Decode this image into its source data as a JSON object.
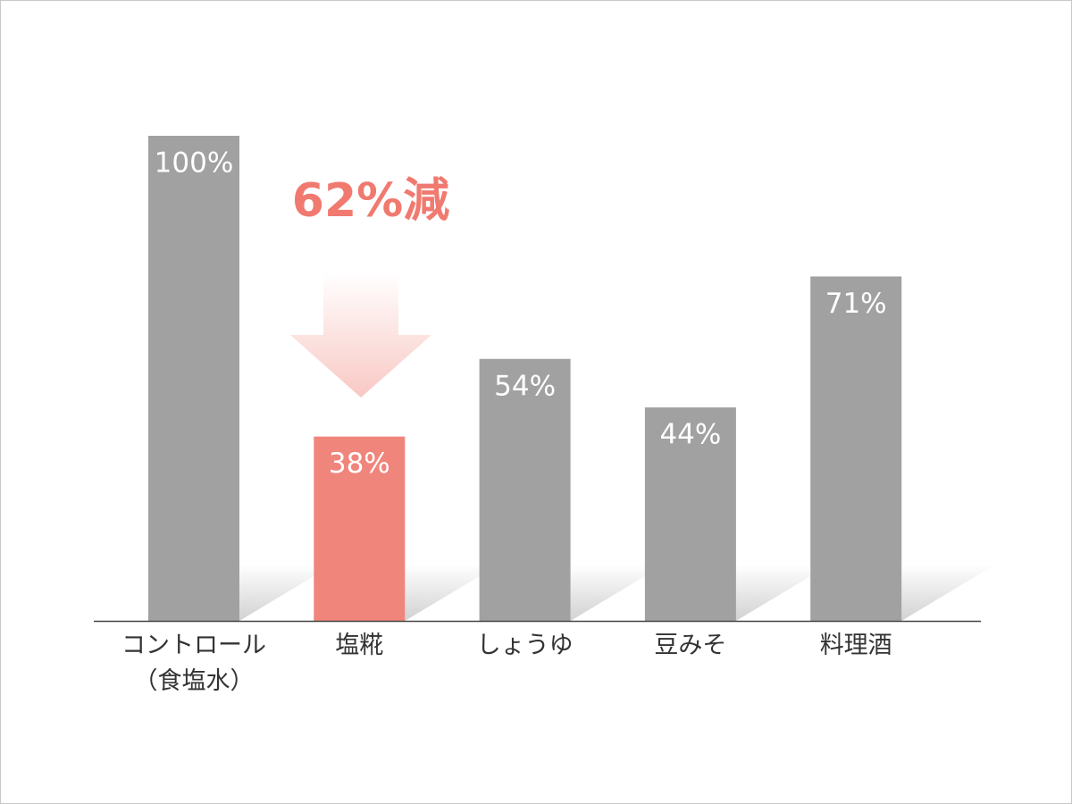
{
  "chart_data": {
    "type": "bar",
    "categories": [
      "コントロール\n（食塩水）",
      "塩糀",
      "しょうゆ",
      "豆みそ",
      "料理酒"
    ],
    "values": [
      100,
      38,
      54,
      44,
      71
    ],
    "value_labels": [
      "100%",
      "38%",
      "54%",
      "44%",
      "71%"
    ],
    "colors": [
      "#a0a1a0",
      "#f0857c",
      "#a0a1a0",
      "#a0a1a0",
      "#a0a1a0"
    ],
    "annotation": "62%減",
    "annotation_color": "#f07a70"
  }
}
